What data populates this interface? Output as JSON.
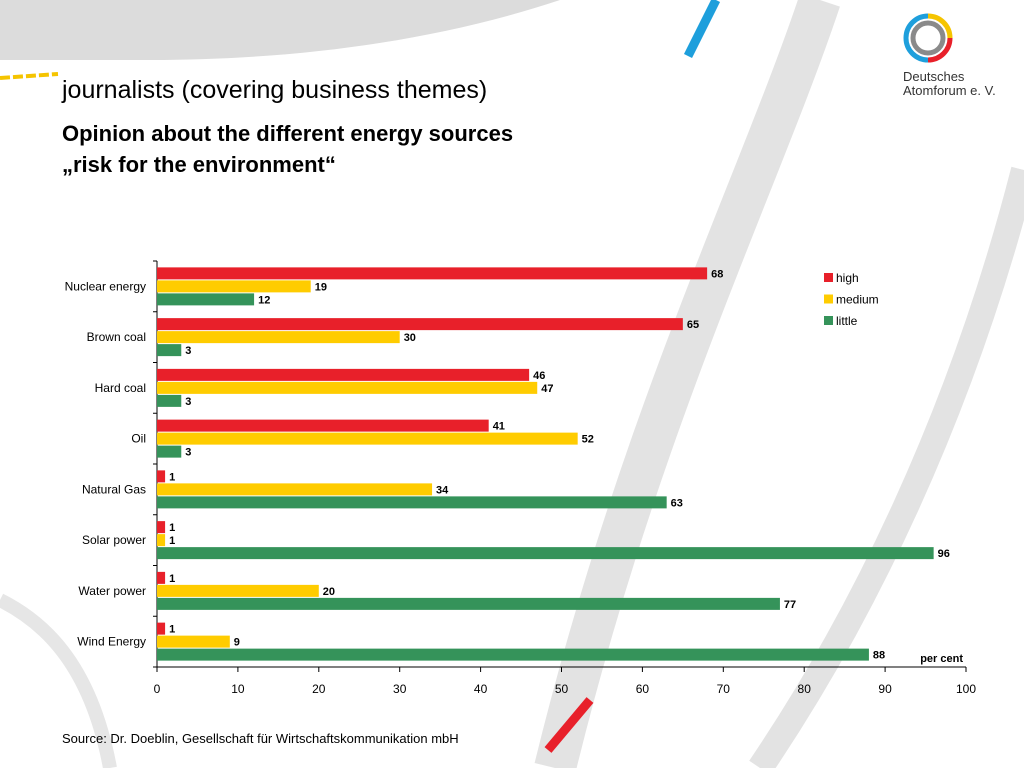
{
  "header": {
    "subtitle": "journalists (covering business themes)",
    "title_line1": "Opinion about the different energy sources",
    "title_line2": "„risk for the environment“"
  },
  "brand": {
    "name_line1": "Deutsches",
    "name_line2": "Atomforum e. V.",
    "logo_icon": "ring-logo-icon"
  },
  "footer": {
    "source": "Source: Dr. Doeblin, Gesellschaft für Wirtschaftskommunikation mbH"
  },
  "chart_data": {
    "type": "bar",
    "orientation": "horizontal",
    "categories": [
      "Nuclear energy",
      "Brown coal",
      "Hard coal",
      "Oil",
      "Natural Gas",
      "Solar power",
      "Water power",
      "Wind Energy"
    ],
    "series": [
      {
        "name": "high",
        "color": "#e8202a",
        "values": [
          68,
          65,
          46,
          41,
          1,
          1,
          1,
          1
        ]
      },
      {
        "name": "medium",
        "color": "#ffcc00",
        "values": [
          19,
          30,
          47,
          52,
          34,
          1,
          20,
          9
        ]
      },
      {
        "name": "little",
        "color": "#35935a",
        "values": [
          12,
          3,
          3,
          3,
          63,
          96,
          77,
          88
        ]
      }
    ],
    "xlim": [
      0,
      100
    ],
    "xticks": [
      0,
      10,
      20,
      30,
      40,
      50,
      60,
      70,
      80,
      90,
      100
    ],
    "unit_label": "per cent",
    "legend": "top-right",
    "grid": false,
    "data_labels": true
  }
}
